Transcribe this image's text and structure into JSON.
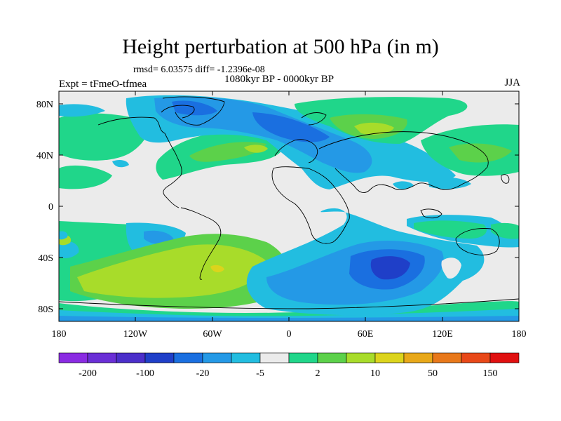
{
  "title": "Height perturbation at 500 hPa (in m)",
  "stats": {
    "text": "rmsd= 6.03575 diff= -1.2396e-08"
  },
  "experiment": {
    "text": "Expt = tFmeO-tfmea"
  },
  "period": {
    "text": "1080kyr BP - 0000kyr BP"
  },
  "season": {
    "text": "JJA"
  },
  "map": {
    "lat_ticks": [
      "80N",
      "40N",
      "0",
      "40S",
      "80S"
    ],
    "lon_ticks": [
      "180",
      "120W",
      "60W",
      "0",
      "60E",
      "120E",
      "180"
    ]
  },
  "colorbar": {
    "colors": [
      "#8a2be2",
      "#6a2fd6",
      "#4b2fca",
      "#1f3fc8",
      "#1a6fe0",
      "#2499e6",
      "#22bde0",
      "#ebebeb",
      "#20d68a",
      "#5cd14a",
      "#a8dc2a",
      "#dcd41c",
      "#e8a819",
      "#e8781a",
      "#e84818",
      "#e01010"
    ],
    "labels": [
      "-200",
      "-100",
      "-20",
      "-5",
      "2",
      "10",
      "50",
      "150"
    ]
  },
  "colors": {
    "lightblue": "#22bde0",
    "blue": "#2499e6",
    "midblue": "#1a6fe0",
    "darkblue": "#1f3fc8",
    "teal": "#20d68a",
    "green": "#5cd14a",
    "lime": "#a8dc2a",
    "neutral": "#ebebeb"
  }
}
